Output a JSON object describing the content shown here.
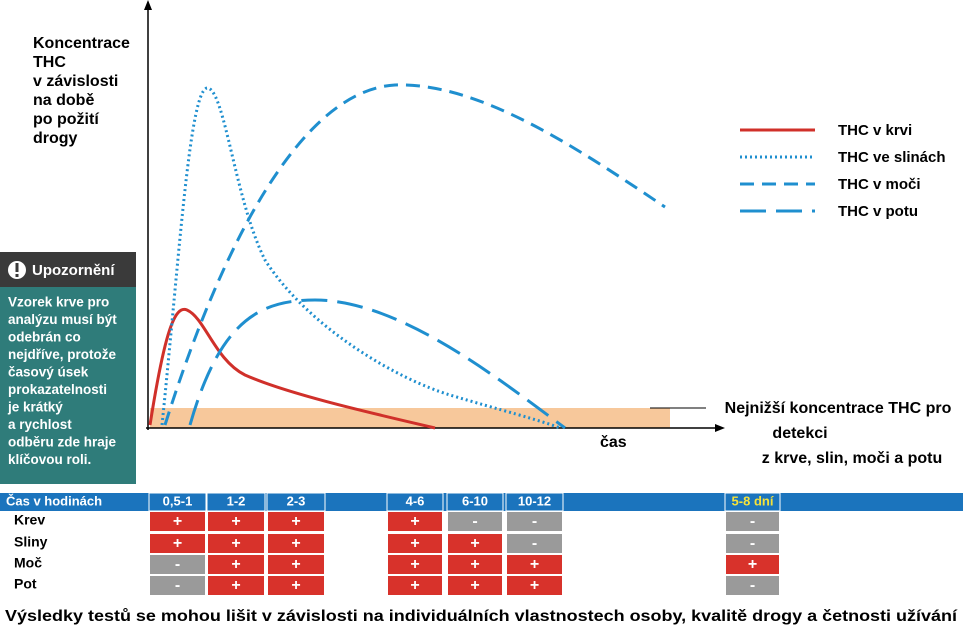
{
  "y_axis_label": [
    "Koncentrace",
    "THC",
    "v závislosti",
    "na době",
    "po požití",
    "drogy"
  ],
  "x_axis_label": "čas",
  "legend": [
    "THC v krvi",
    "THC ve slinách",
    "THC v moči",
    "THC v potu"
  ],
  "threshold_label": [
    "Nejnižší koncentrace THC pro",
    "detekci",
    "z krve, slin, moči a potu"
  ],
  "warning": {
    "title": "Upozornění",
    "lines": [
      "Vzorek krve pro",
      "analýzu musí být",
      "odebrán co",
      "nejdříve, protože",
      "časový úsek",
      "prokazatelnosti",
      "je krátký",
      "a rychlost",
      "odběru zde hraje",
      "klíčovou roli."
    ]
  },
  "table": {
    "header": "Čas v hodinách",
    "columns": [
      "0,5-1",
      "1-2",
      "2-3",
      "4-6",
      "6-10",
      "10-12",
      "5-8 dní"
    ],
    "rows": [
      {
        "label": "Krev",
        "cells": [
          "+",
          "+",
          "+",
          "+",
          "-",
          "-",
          "-"
        ]
      },
      {
        "label": "Sliny",
        "cells": [
          "+",
          "+",
          "+",
          "+",
          "+",
          "-",
          "-"
        ]
      },
      {
        "label": "Moč",
        "cells": [
          "-",
          "+",
          "+",
          "+",
          "+",
          "+",
          "+"
        ]
      },
      {
        "label": "Pot",
        "cells": [
          "-",
          "+",
          "+",
          "+",
          "+",
          "+",
          "-"
        ]
      }
    ]
  },
  "footer": "Výsledky testů se  mohou lišit v závislosti na individuálních vlastnostech osoby, kvalitě drogy a četnosti užívání"
}
